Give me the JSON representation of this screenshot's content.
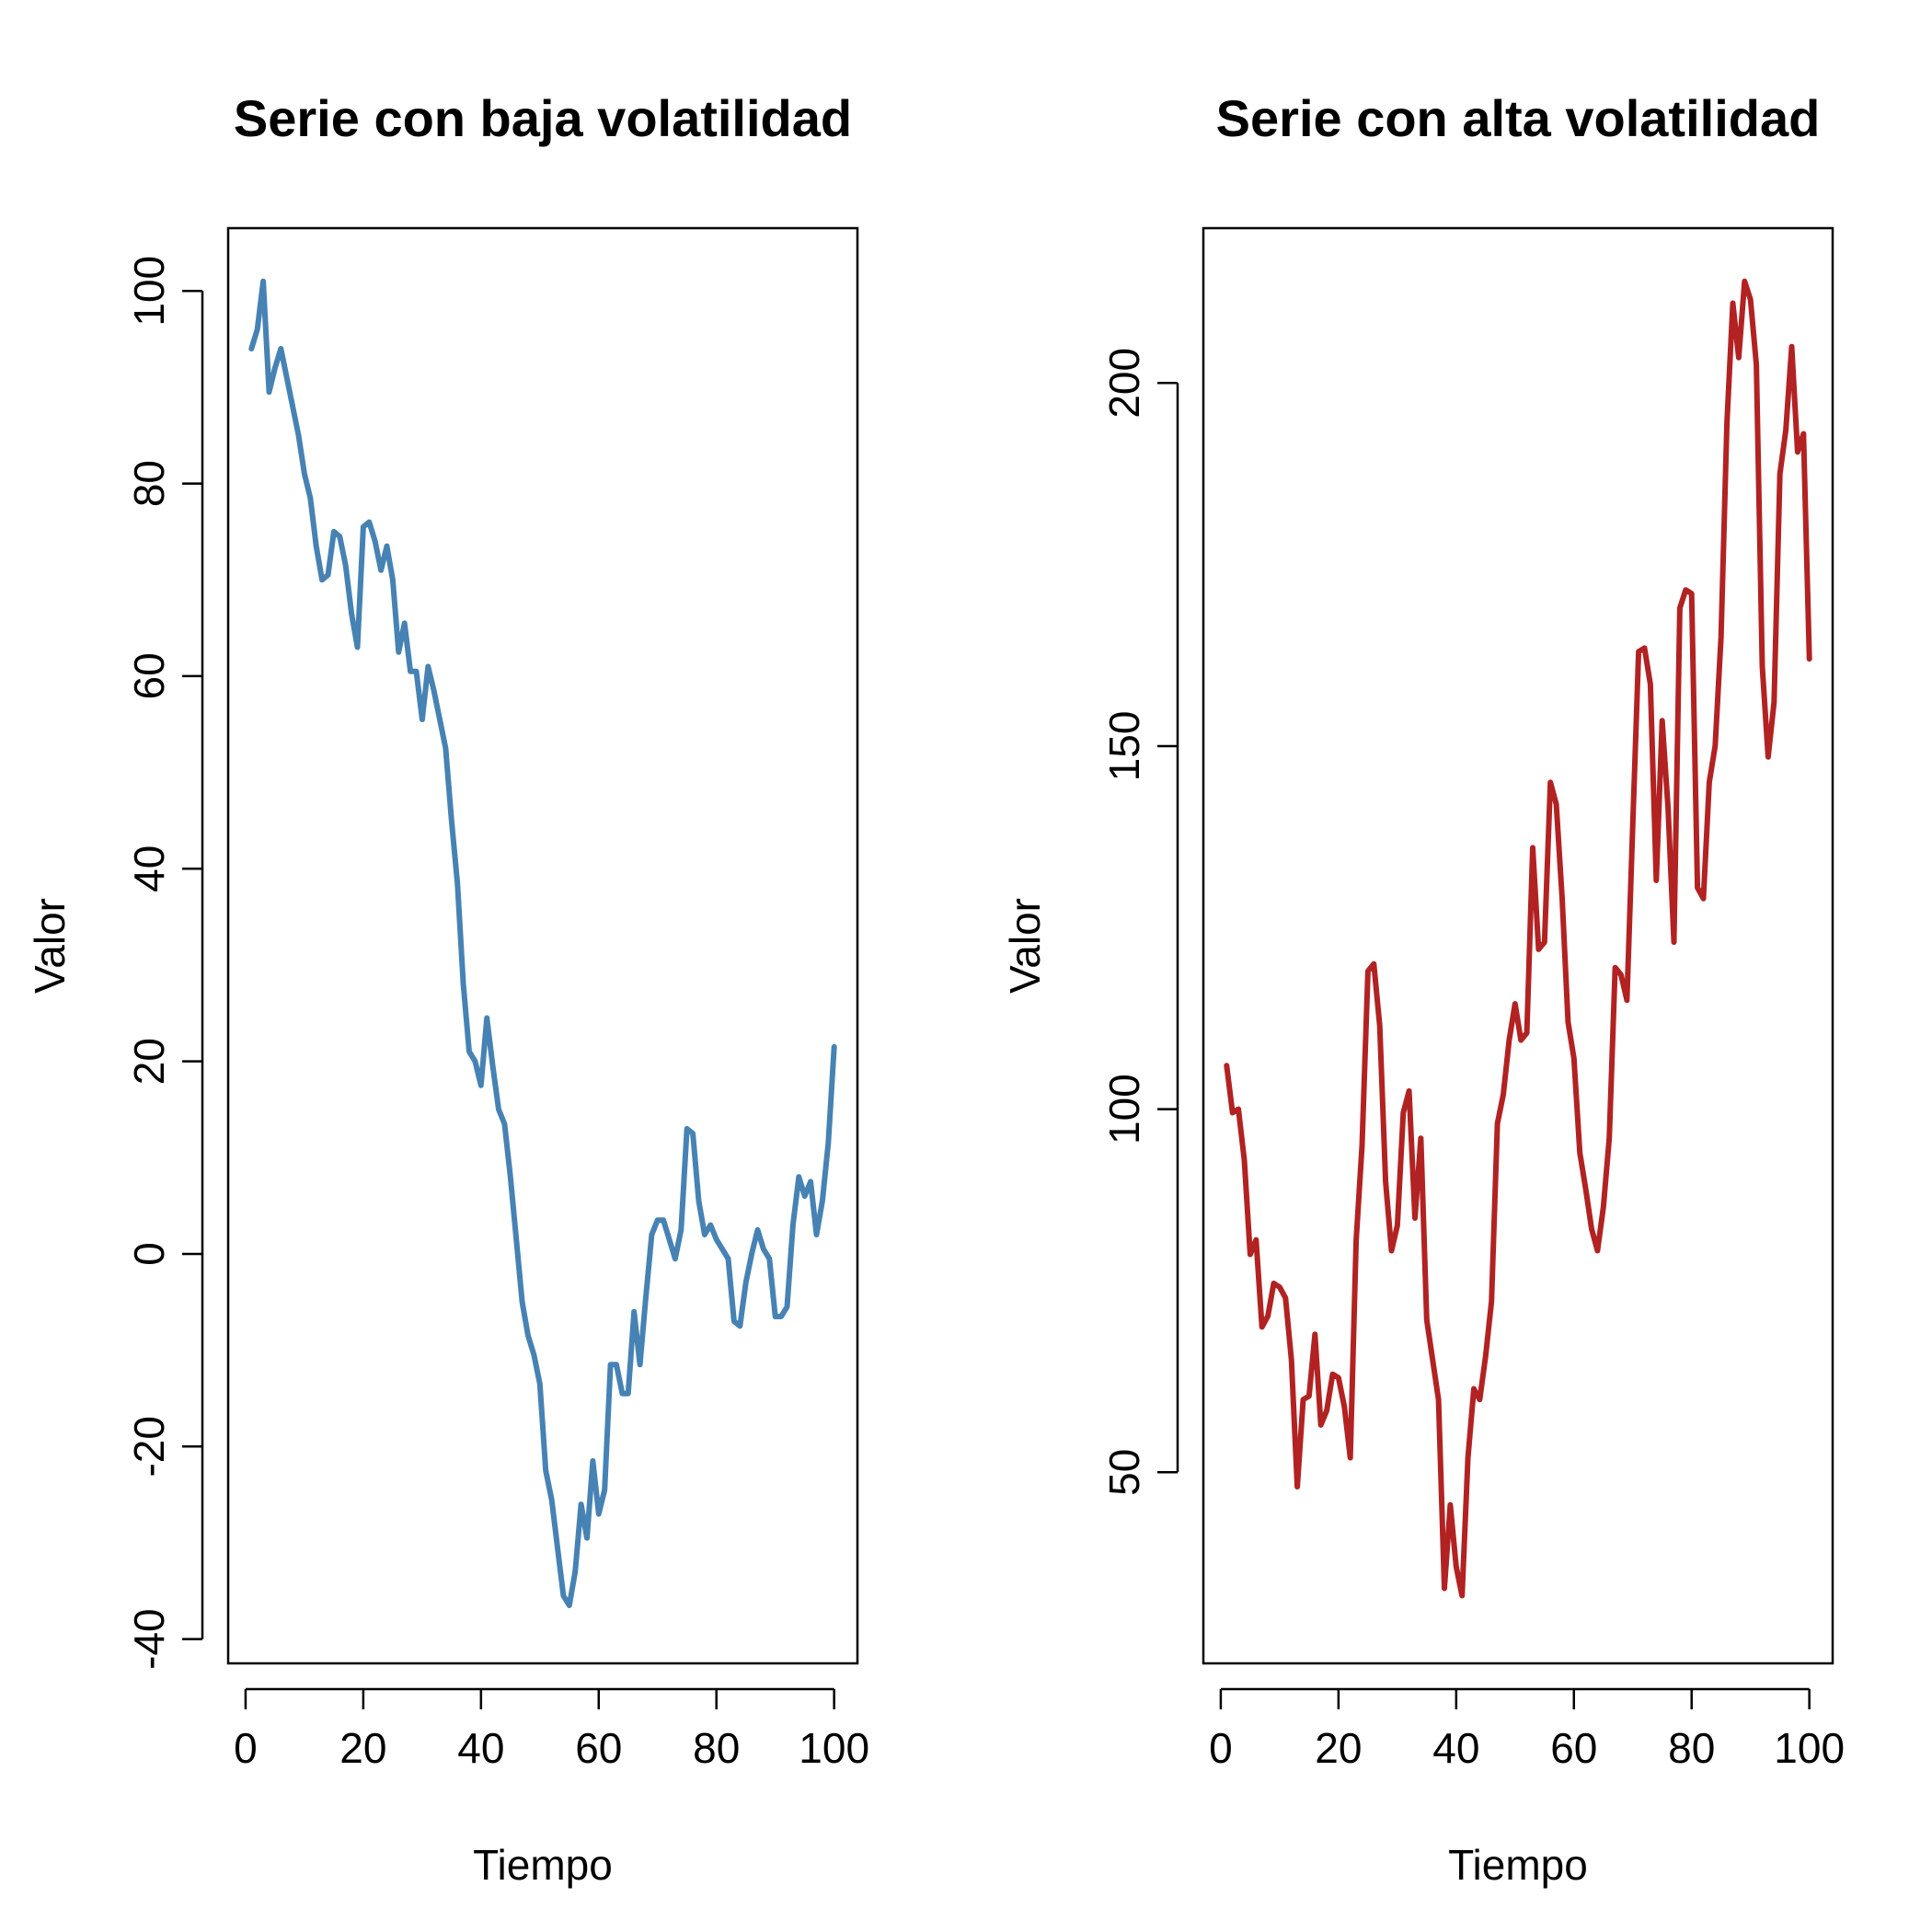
{
  "chart_data": [
    {
      "type": "line",
      "title": "Serie con baja volatilidad",
      "xlabel": "Tiempo",
      "ylabel": "Valor",
      "xlim": [
        1,
        100
      ],
      "ylim": [
        -37,
        101
      ],
      "xticks": [
        0,
        20,
        40,
        60,
        80,
        100
      ],
      "yticks": [
        -40,
        -20,
        0,
        20,
        40,
        60,
        80,
        100
      ],
      "color": "#4682b4",
      "grid": false,
      "series": [
        {
          "x": [
            1,
            2,
            3,
            4,
            5,
            6,
            7,
            8,
            9,
            10,
            11,
            12,
            13,
            14,
            15,
            16,
            17,
            18,
            19,
            20,
            21,
            22,
            23,
            24,
            25,
            26,
            27,
            28,
            29,
            30,
            31,
            32,
            33,
            34,
            35,
            36,
            37,
            38,
            39,
            40,
            41,
            42,
            43,
            44,
            45,
            46,
            47,
            48,
            49,
            50,
            51,
            52,
            53,
            54,
            55,
            56,
            57,
            58,
            59,
            60,
            61,
            62,
            63,
            64,
            65,
            66,
            67,
            68,
            69,
            70,
            71,
            72,
            73,
            74,
            75,
            76,
            77,
            78,
            79,
            80,
            81,
            82,
            83,
            84,
            85,
            86,
            87,
            88,
            89,
            90,
            91,
            92,
            93,
            94,
            95,
            96,
            97,
            98,
            99,
            100
          ],
          "values": [
            94,
            96,
            101,
            89.5,
            92,
            94,
            91,
            88,
            85,
            81,
            78.5,
            73.5,
            70,
            70.5,
            75,
            74.5,
            71.5,
            66.5,
            63,
            75.5,
            76,
            74,
            71,
            73.5,
            70,
            62.5,
            65.5,
            60.5,
            60.5,
            55.5,
            61,
            58.5,
            55.5,
            52.5,
            45,
            38.5,
            28,
            21,
            20,
            17.5,
            24.5,
            19.5,
            15,
            13.5,
            8,
            1.5,
            -5,
            -8.5,
            -10.5,
            -13.5,
            -22.5,
            -25.5,
            -30.5,
            -35.5,
            -36.5,
            -33,
            -26,
            -29.5,
            -21.5,
            -27,
            -24.5,
            -11.5,
            -11.5,
            -14.5,
            -14.5,
            -6,
            -11.5,
            -4.5,
            2,
            3.5,
            3.5,
            1.5,
            -0.5,
            2.5,
            13,
            12.5,
            5.5,
            2,
            3,
            1.5,
            0.5,
            -0.5,
            -7,
            -7.5,
            -3,
            0,
            2.5,
            0.5,
            -0.5,
            -6.5,
            -6.5,
            -5.5,
            3,
            8,
            6,
            7.5,
            2,
            5.5,
            11.5,
            21.5
          ]
        }
      ]
    },
    {
      "type": "line",
      "title": "Serie con alta volatilidad",
      "xlabel": "Tiempo",
      "ylabel": "Valor",
      "xlim": [
        1,
        100
      ],
      "ylim": [
        31,
        214
      ],
      "xticks": [
        0,
        20,
        40,
        60,
        80,
        100
      ],
      "yticks": [
        50,
        100,
        150,
        200
      ],
      "color": "#b22222",
      "grid": false,
      "series": [
        {
          "x": [
            1,
            2,
            3,
            4,
            5,
            6,
            7,
            8,
            9,
            10,
            11,
            12,
            13,
            14,
            15,
            16,
            17,
            18,
            19,
            20,
            21,
            22,
            23,
            24,
            25,
            26,
            27,
            28,
            29,
            30,
            31,
            32,
            33,
            34,
            35,
            36,
            37,
            38,
            39,
            40,
            41,
            42,
            43,
            44,
            45,
            46,
            47,
            48,
            49,
            50,
            51,
            52,
            53,
            54,
            55,
            56,
            57,
            58,
            59,
            60,
            61,
            62,
            63,
            64,
            65,
            66,
            67,
            68,
            69,
            70,
            71,
            72,
            73,
            74,
            75,
            76,
            77,
            78,
            79,
            80,
            81,
            82,
            83,
            84,
            85,
            86,
            87,
            88,
            89,
            90,
            91,
            92,
            93,
            94,
            95,
            96,
            97,
            98,
            99,
            100
          ],
          "values": [
            106,
            99.5,
            100,
            93,
            80,
            82,
            70,
            71.5,
            76,
            75.5,
            74,
            65.5,
            48,
            60,
            60.5,
            69,
            56.5,
            58.5,
            63.5,
            63,
            59,
            52,
            82,
            95,
            119,
            120,
            111.5,
            90,
            80.5,
            84,
            99.5,
            102.5,
            85,
            96,
            71,
            65.5,
            60,
            34,
            45.5,
            37,
            33,
            52,
            61.5,
            60,
            66,
            73.5,
            98,
            102,
            109.5,
            114.5,
            109.5,
            110.5,
            136,
            122,
            123,
            145,
            142,
            129,
            112,
            107,
            94,
            89,
            83.5,
            80.5,
            86.5,
            96,
            119.5,
            118.5,
            115,
            139,
            163,
            163.5,
            158.5,
            131.5,
            153.5,
            141.5,
            123,
            169,
            171.5,
            171,
            130.5,
            129,
            145,
            150,
            165,
            194.5,
            211,
            203.5,
            214,
            211.5,
            202.5,
            161,
            148.5,
            156,
            187.5,
            193.5,
            205,
            190.5,
            193,
            162
          ]
        }
      ]
    }
  ]
}
